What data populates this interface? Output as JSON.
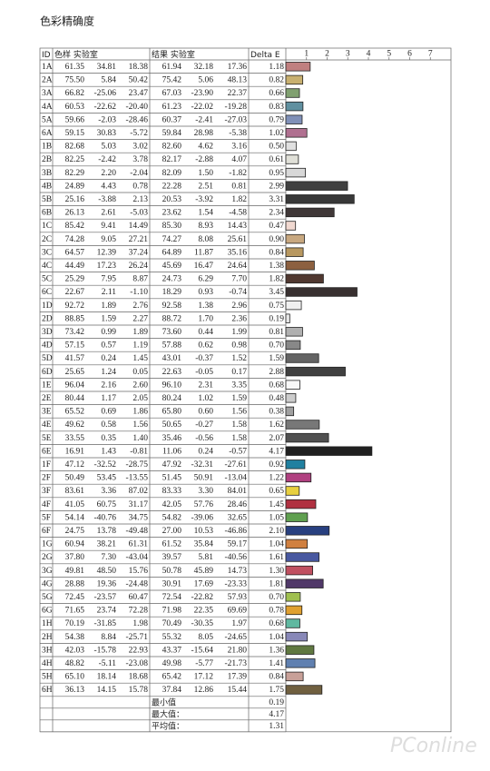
{
  "title": "色彩精确度",
  "table": {
    "header": [
      "ID",
      "色样 实验室",
      "结果 实验室",
      "Delta E"
    ],
    "rows": [
      [
        "1A",
        "61.35",
        "34.81",
        "18.38",
        "61.94",
        "32.18",
        "17.36",
        "1.18"
      ],
      [
        "2A",
        "75.50",
        "5.84",
        "50.42",
        "75.42",
        "5.06",
        "48.13",
        "0.82"
      ],
      [
        "3A",
        "66.82",
        "-25.06",
        "23.47",
        "67.03",
        "-23.90",
        "22.37",
        "0.66"
      ],
      [
        "4A",
        "60.53",
        "-22.62",
        "-20.40",
        "61.23",
        "-22.02",
        "-19.28",
        "0.83"
      ],
      [
        "5A",
        "59.66",
        "-2.03",
        "-28.46",
        "60.37",
        "-2.41",
        "-27.03",
        "0.79"
      ],
      [
        "6A",
        "59.15",
        "30.83",
        "-5.72",
        "59.84",
        "28.98",
        "-5.38",
        "1.02"
      ],
      [
        "1B",
        "82.68",
        "5.03",
        "3.02",
        "82.60",
        "4.62",
        "3.16",
        "0.50"
      ],
      [
        "2B",
        "82.25",
        "-2.42",
        "3.78",
        "82.17",
        "-2.88",
        "4.07",
        "0.61"
      ],
      [
        "3B",
        "82.29",
        "2.20",
        "-2.04",
        "82.09",
        "1.50",
        "-1.82",
        "0.95"
      ],
      [
        "4B",
        "24.89",
        "4.43",
        "0.78",
        "22.28",
        "2.51",
        "0.81",
        "2.99"
      ],
      [
        "5B",
        "25.16",
        "-3.88",
        "2.13",
        "20.53",
        "-3.92",
        "1.82",
        "3.31"
      ],
      [
        "6B",
        "26.13",
        "2.61",
        "-5.03",
        "23.62",
        "1.54",
        "-4.58",
        "2.34"
      ],
      [
        "1C",
        "85.42",
        "9.41",
        "14.49",
        "85.30",
        "8.93",
        "14.43",
        "0.47"
      ],
      [
        "2C",
        "74.28",
        "9.05",
        "27.21",
        "74.27",
        "8.08",
        "25.61",
        "0.90"
      ],
      [
        "3C",
        "64.57",
        "12.39",
        "37.24",
        "64.89",
        "11.87",
        "35.16",
        "0.84"
      ],
      [
        "4C",
        "44.49",
        "17.23",
        "26.24",
        "45.69",
        "16.47",
        "24.64",
        "1.38"
      ],
      [
        "5C",
        "25.29",
        "7.95",
        "8.87",
        "24.73",
        "6.29",
        "7.70",
        "1.82"
      ],
      [
        "6C",
        "22.67",
        "2.11",
        "-1.10",
        "18.29",
        "0.93",
        "-0.74",
        "3.45"
      ],
      [
        "1D",
        "92.72",
        "1.89",
        "2.76",
        "92.58",
        "1.38",
        "2.96",
        "0.75"
      ],
      [
        "2D",
        "88.85",
        "1.59",
        "2.27",
        "88.72",
        "1.70",
        "2.36",
        "0.19"
      ],
      [
        "3D",
        "73.42",
        "0.99",
        "1.89",
        "73.60",
        "0.44",
        "1.99",
        "0.81"
      ],
      [
        "4D",
        "57.15",
        "0.57",
        "1.19",
        "57.88",
        "0.62",
        "0.98",
        "0.70"
      ],
      [
        "5D",
        "41.57",
        "0.24",
        "1.45",
        "43.01",
        "-0.37",
        "1.52",
        "1.59"
      ],
      [
        "6D",
        "25.65",
        "1.24",
        "0.05",
        "22.63",
        "-0.05",
        "0.17",
        "2.88"
      ],
      [
        "1E",
        "96.04",
        "2.16",
        "2.60",
        "96.10",
        "2.31",
        "3.35",
        "0.68"
      ],
      [
        "2E",
        "80.44",
        "1.17",
        "2.05",
        "80.24",
        "1.02",
        "1.59",
        "0.48"
      ],
      [
        "3E",
        "65.52",
        "0.69",
        "1.86",
        "65.80",
        "0.60",
        "1.56",
        "0.38"
      ],
      [
        "4E",
        "49.62",
        "0.58",
        "1.56",
        "50.65",
        "-0.27",
        "1.58",
        "1.62"
      ],
      [
        "5E",
        "33.55",
        "0.35",
        "1.40",
        "35.46",
        "-0.56",
        "1.58",
        "2.07"
      ],
      [
        "6E",
        "16.91",
        "1.43",
        "-0.81",
        "11.06",
        "0.24",
        "-0.57",
        "4.17"
      ],
      [
        "1F",
        "47.12",
        "-32.52",
        "-28.75",
        "47.92",
        "-32.31",
        "-27.61",
        "0.92"
      ],
      [
        "2F",
        "50.49",
        "53.45",
        "-13.55",
        "51.45",
        "50.91",
        "-13.04",
        "1.22"
      ],
      [
        "3F",
        "83.61",
        "3.36",
        "87.02",
        "83.33",
        "3.30",
        "84.01",
        "0.65"
      ],
      [
        "4F",
        "41.05",
        "60.75",
        "31.17",
        "42.05",
        "57.76",
        "28.46",
        "1.45"
      ],
      [
        "5F",
        "54.14",
        "-40.76",
        "34.75",
        "54.82",
        "-39.06",
        "32.65",
        "1.05"
      ],
      [
        "6F",
        "24.75",
        "13.78",
        "-49.48",
        "27.00",
        "10.53",
        "-46.86",
        "2.10"
      ],
      [
        "1G",
        "60.94",
        "38.21",
        "61.31",
        "61.52",
        "35.84",
        "59.17",
        "1.04"
      ],
      [
        "2G",
        "37.80",
        "7.30",
        "-43.04",
        "39.57",
        "5.81",
        "-40.56",
        "1.61"
      ],
      [
        "3G",
        "49.81",
        "48.50",
        "15.76",
        "50.78",
        "45.89",
        "14.73",
        "1.30"
      ],
      [
        "4G",
        "28.88",
        "19.36",
        "-24.48",
        "30.91",
        "17.69",
        "-23.33",
        "1.81"
      ],
      [
        "5G",
        "72.45",
        "-23.57",
        "60.47",
        "72.54",
        "-22.82",
        "57.93",
        "0.70"
      ],
      [
        "6G",
        "71.65",
        "23.74",
        "72.28",
        "71.98",
        "22.35",
        "69.69",
        "0.78"
      ],
      [
        "1H",
        "70.19",
        "-31.85",
        "1.98",
        "70.49",
        "-30.35",
        "1.97",
        "0.68"
      ],
      [
        "2H",
        "54.38",
        "8.84",
        "-25.71",
        "55.32",
        "8.05",
        "-24.65",
        "1.04"
      ],
      [
        "3H",
        "42.03",
        "-15.78",
        "22.93",
        "43.37",
        "-15.64",
        "21.80",
        "1.36"
      ],
      [
        "4H",
        "48.82",
        "-5.11",
        "-23.08",
        "49.98",
        "-5.77",
        "-21.73",
        "1.41"
      ],
      [
        "5H",
        "65.10",
        "18.14",
        "18.68",
        "65.42",
        "17.12",
        "17.39",
        "0.84"
      ],
      [
        "6H",
        "36.13",
        "14.15",
        "15.78",
        "37.84",
        "12.86",
        "15.44",
        "1.75"
      ]
    ],
    "summary": [
      [
        "最小值",
        "0.19"
      ],
      [
        "最大值：",
        "4.17"
      ],
      [
        "平均值：",
        "1.31"
      ]
    ]
  },
  "bars": {
    "xlim": [
      0,
      8
    ],
    "xticks": [
      1,
      2,
      3,
      4,
      5,
      6,
      7
    ],
    "colors": [
      "#c08080",
      "#c8b070",
      "#80a070",
      "#6090a0",
      "#8090b8",
      "#b07090",
      "#e0e0e0",
      "#e0e0d8",
      "#d8d8d8",
      "#404040",
      "#383838",
      "#403838",
      "#f0d8d0",
      "#c8a880",
      "#b89860",
      "#8c6040",
      "#503830",
      "#383030",
      "#f0f0f0",
      "#e8e8e8",
      "#b0b0b0",
      "#888888",
      "#646464",
      "#404040",
      "#f8f8f8",
      "#cccccc",
      "#a0a0a0",
      "#787878",
      "#505050",
      "#202020",
      "#2080a0",
      "#b04080",
      "#e8d040",
      "#b03040",
      "#60a050",
      "#284080",
      "#d08040",
      "#4858a0",
      "#c05060",
      "#503868",
      "#a0c050",
      "#e0a030",
      "#60b8a0",
      "#8888b8",
      "#607840",
      "#6080b0",
      "#c8a098",
      "#706040"
    ]
  },
  "watermark": "PConline"
}
